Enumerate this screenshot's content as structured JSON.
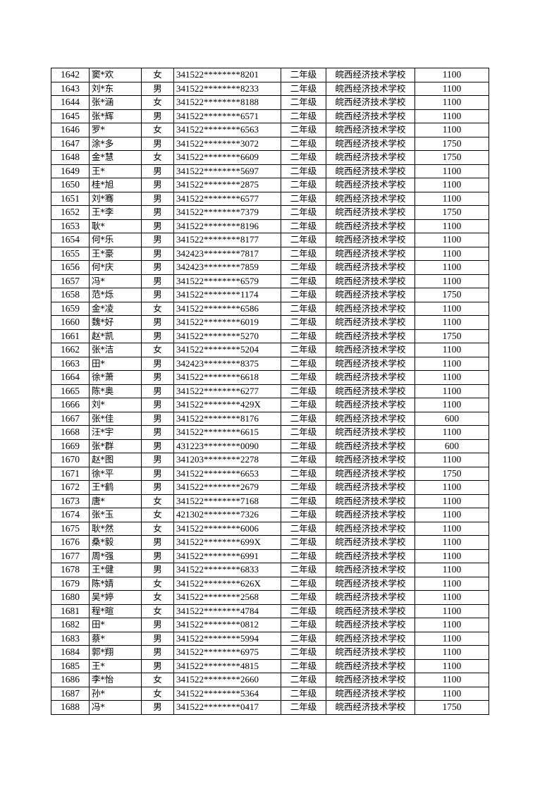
{
  "rows": [
    {
      "no": "1642",
      "name": "窦*欢",
      "gender": "女",
      "id": "341522********8201",
      "grade": "二年级",
      "school": "皖西经济技术学校",
      "amount": "1100"
    },
    {
      "no": "1643",
      "name": "刘*东",
      "gender": "男",
      "id": "341522********8233",
      "grade": "二年级",
      "school": "皖西经济技术学校",
      "amount": "1100"
    },
    {
      "no": "1644",
      "name": "张*涵",
      "gender": "女",
      "id": "341522********8188",
      "grade": "二年级",
      "school": "皖西经济技术学校",
      "amount": "1100"
    },
    {
      "no": "1645",
      "name": "张*辉",
      "gender": "男",
      "id": "341522********6571",
      "grade": "二年级",
      "school": "皖西经济技术学校",
      "amount": "1100"
    },
    {
      "no": "1646",
      "name": "罗*",
      "gender": "女",
      "id": "341522********6563",
      "grade": "二年级",
      "school": "皖西经济技术学校",
      "amount": "1100"
    },
    {
      "no": "1647",
      "name": "涂*多",
      "gender": "男",
      "id": "341522********3072",
      "grade": "二年级",
      "school": "皖西经济技术学校",
      "amount": "1750"
    },
    {
      "no": "1648",
      "name": "金*慧",
      "gender": "女",
      "id": "341522********6609",
      "grade": "二年级",
      "school": "皖西经济技术学校",
      "amount": "1750"
    },
    {
      "no": "1649",
      "name": "王*",
      "gender": "男",
      "id": "341522********5697",
      "grade": "二年级",
      "school": "皖西经济技术学校",
      "amount": "1100"
    },
    {
      "no": "1650",
      "name": "桂*旭",
      "gender": "男",
      "id": "341522********2875",
      "grade": "二年级",
      "school": "皖西经济技术学校",
      "amount": "1100"
    },
    {
      "no": "1651",
      "name": "刘*骞",
      "gender": "男",
      "id": "341522********6577",
      "grade": "二年级",
      "school": "皖西经济技术学校",
      "amount": "1100"
    },
    {
      "no": "1652",
      "name": "王*李",
      "gender": "男",
      "id": "341522********7379",
      "grade": "二年级",
      "school": "皖西经济技术学校",
      "amount": "1750"
    },
    {
      "no": "1653",
      "name": "耿*",
      "gender": "男",
      "id": "341522********8196",
      "grade": "二年级",
      "school": "皖西经济技术学校",
      "amount": "1100"
    },
    {
      "no": "1654",
      "name": "何*乐",
      "gender": "男",
      "id": "341522********8177",
      "grade": "二年级",
      "school": "皖西经济技术学校",
      "amount": "1100"
    },
    {
      "no": "1655",
      "name": "王*豪",
      "gender": "男",
      "id": "342423********7817",
      "grade": "二年级",
      "school": "皖西经济技术学校",
      "amount": "1100"
    },
    {
      "no": "1656",
      "name": "何*庆",
      "gender": "男",
      "id": "342423********7859",
      "grade": "二年级",
      "school": "皖西经济技术学校",
      "amount": "1100"
    },
    {
      "no": "1657",
      "name": "冯*",
      "gender": "男",
      "id": "341522********6579",
      "grade": "二年级",
      "school": "皖西经济技术学校",
      "amount": "1100"
    },
    {
      "no": "1658",
      "name": "范*烁",
      "gender": "男",
      "id": "341522********1174",
      "grade": "二年级",
      "school": "皖西经济技术学校",
      "amount": "1750"
    },
    {
      "no": "1659",
      "name": "金*凌",
      "gender": "女",
      "id": "341522********6586",
      "grade": "二年级",
      "school": "皖西经济技术学校",
      "amount": "1100"
    },
    {
      "no": "1660",
      "name": "魏*好",
      "gender": "男",
      "id": "341522********6019",
      "grade": "二年级",
      "school": "皖西经济技术学校",
      "amount": "1100"
    },
    {
      "no": "1661",
      "name": "赵*凯",
      "gender": "男",
      "id": "341522********5270",
      "grade": "二年级",
      "school": "皖西经济技术学校",
      "amount": "1750"
    },
    {
      "no": "1662",
      "name": "张*洁",
      "gender": "女",
      "id": "341522********5204",
      "grade": "二年级",
      "school": "皖西经济技术学校",
      "amount": "1100"
    },
    {
      "no": "1663",
      "name": "田*",
      "gender": "男",
      "id": "342423********8375",
      "grade": "二年级",
      "school": "皖西经济技术学校",
      "amount": "1100"
    },
    {
      "no": "1664",
      "name": "徐*萧",
      "gender": "男",
      "id": "341522********6618",
      "grade": "二年级",
      "school": "皖西经济技术学校",
      "amount": "1100"
    },
    {
      "no": "1665",
      "name": "陈*奥",
      "gender": "男",
      "id": "341522********6277",
      "grade": "二年级",
      "school": "皖西经济技术学校",
      "amount": "1100"
    },
    {
      "no": "1666",
      "name": "刘*",
      "gender": "男",
      "id": "341522********429X",
      "grade": "二年级",
      "school": "皖西经济技术学校",
      "amount": "1100"
    },
    {
      "no": "1667",
      "name": "张*佳",
      "gender": "男",
      "id": "341522********8176",
      "grade": "二年级",
      "school": "皖西经济技术学校",
      "amount": "600"
    },
    {
      "no": "1668",
      "name": "汪*宇",
      "gender": "男",
      "id": "341522********6615",
      "grade": "二年级",
      "school": "皖西经济技术学校",
      "amount": "1100"
    },
    {
      "no": "1669",
      "name": "张*群",
      "gender": "男",
      "id": "431223********0090",
      "grade": "二年级",
      "school": "皖西经济技术学校",
      "amount": "600"
    },
    {
      "no": "1670",
      "name": "赵*图",
      "gender": "男",
      "id": "341203********2278",
      "grade": "二年级",
      "school": "皖西经济技术学校",
      "amount": "1100"
    },
    {
      "no": "1671",
      "name": "徐*平",
      "gender": "男",
      "id": "341522********6653",
      "grade": "二年级",
      "school": "皖西经济技术学校",
      "amount": "1750"
    },
    {
      "no": "1672",
      "name": "王*鹤",
      "gender": "男",
      "id": "341522********2679",
      "grade": "二年级",
      "school": "皖西经济技术学校",
      "amount": "1100"
    },
    {
      "no": "1673",
      "name": "唐*",
      "gender": "女",
      "id": "341522********7168",
      "grade": "二年级",
      "school": "皖西经济技术学校",
      "amount": "1100"
    },
    {
      "no": "1674",
      "name": "张*玉",
      "gender": "女",
      "id": "421302********7326",
      "grade": "二年级",
      "school": "皖西经济技术学校",
      "amount": "1100"
    },
    {
      "no": "1675",
      "name": "耿*然",
      "gender": "女",
      "id": "341522********6006",
      "grade": "二年级",
      "school": "皖西经济技术学校",
      "amount": "1100"
    },
    {
      "no": "1676",
      "name": "桑*毅",
      "gender": "男",
      "id": "341522********699X",
      "grade": "二年级",
      "school": "皖西经济技术学校",
      "amount": "1100"
    },
    {
      "no": "1677",
      "name": "周*强",
      "gender": "男",
      "id": "341522********6991",
      "grade": "二年级",
      "school": "皖西经济技术学校",
      "amount": "1100"
    },
    {
      "no": "1678",
      "name": "王*健",
      "gender": "男",
      "id": "341522********6833",
      "grade": "二年级",
      "school": "皖西经济技术学校",
      "amount": "1100"
    },
    {
      "no": "1679",
      "name": "陈*婧",
      "gender": "女",
      "id": "341522********626X",
      "grade": "二年级",
      "school": "皖西经济技术学校",
      "amount": "1100"
    },
    {
      "no": "1680",
      "name": "吴*婷",
      "gender": "女",
      "id": "341522********2568",
      "grade": "二年级",
      "school": "皖西经济技术学校",
      "amount": "1100"
    },
    {
      "no": "1681",
      "name": "程*暄",
      "gender": "女",
      "id": "341522********4784",
      "grade": "二年级",
      "school": "皖西经济技术学校",
      "amount": "1100"
    },
    {
      "no": "1682",
      "name": "田*",
      "gender": "男",
      "id": "341522********0812",
      "grade": "二年级",
      "school": "皖西经济技术学校",
      "amount": "1100"
    },
    {
      "no": "1683",
      "name": "蔡*",
      "gender": "男",
      "id": "341522********5994",
      "grade": "二年级",
      "school": "皖西经济技术学校",
      "amount": "1100"
    },
    {
      "no": "1684",
      "name": "郭*翔",
      "gender": "男",
      "id": "341522********6975",
      "grade": "二年级",
      "school": "皖西经济技术学校",
      "amount": "1100"
    },
    {
      "no": "1685",
      "name": "王*",
      "gender": "男",
      "id": "341522********4815",
      "grade": "二年级",
      "school": "皖西经济技术学校",
      "amount": "1100"
    },
    {
      "no": "1686",
      "name": "李*怡",
      "gender": "女",
      "id": "341522********2660",
      "grade": "二年级",
      "school": "皖西经济技术学校",
      "amount": "1100"
    },
    {
      "no": "1687",
      "name": "孙*",
      "gender": "女",
      "id": "341522********5364",
      "grade": "二年级",
      "school": "皖西经济技术学校",
      "amount": "1100"
    },
    {
      "no": "1688",
      "name": "冯*",
      "gender": "男",
      "id": "341522********0417",
      "grade": "二年级",
      "school": "皖西经济技术学校",
      "amount": "1750"
    }
  ]
}
